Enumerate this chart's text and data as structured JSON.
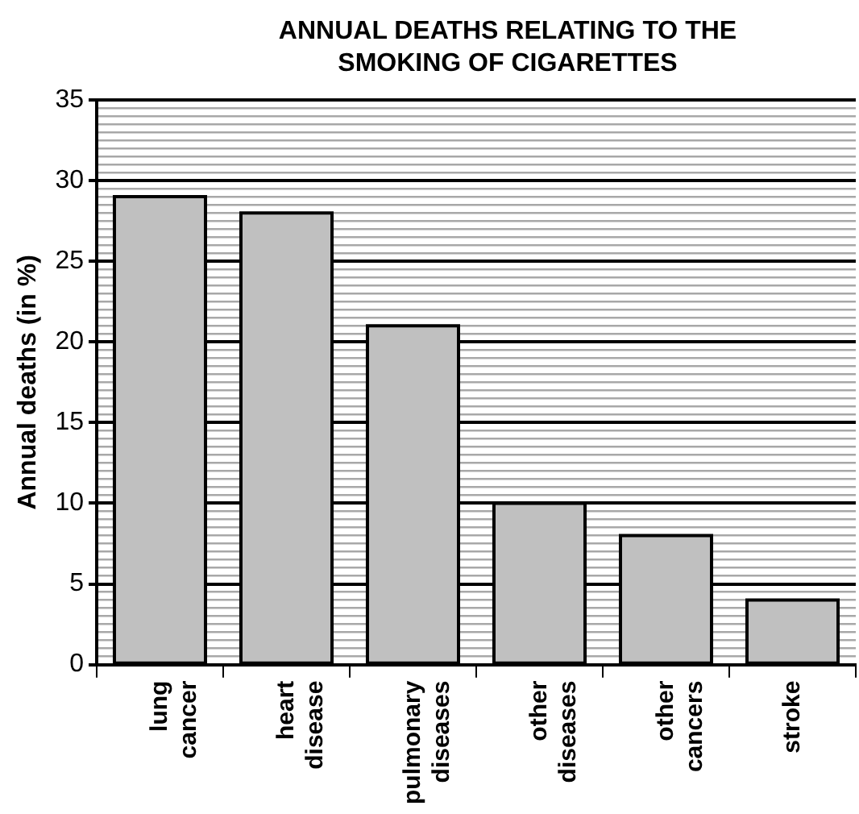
{
  "chart_data": {
    "type": "bar",
    "title": "ANNUAL DEATHS RELATING TO THE SMOKING OF CIGARETTES",
    "ylabel": "Annual deaths (in %)",
    "categories": [
      "lung cancer",
      "heart disease",
      "pulmonary diseases",
      "other diseases",
      "other cancers",
      "stroke"
    ],
    "values": [
      29,
      28,
      21,
      10,
      8,
      4
    ],
    "color": "#c0c0c0",
    "ylim": [
      0,
      35
    ],
    "yticks": [
      0,
      {
        "value": 0.5,
        "label": null
      },
      {
        "value": 1,
        "label": null
      },
      {
        "value": 1.5,
        "label": null
      },
      {
        "value": 2,
        "label": null
      },
      {
        "value": 2.5,
        "label": null
      },
      {
        "value": 3,
        "label": null
      },
      {
        "value": 3.5,
        "label": null
      },
      {
        "value": 4,
        "label": null
      },
      {
        "value": 4.5,
        "label": null
      },
      5,
      {
        "value": 5.5,
        "label": null
      },
      {
        "value": 6,
        "label": null
      },
      {
        "value": 6.5,
        "label": null
      },
      {
        "value": 7,
        "label": null
      },
      {
        "value": 7.5,
        "label": null
      },
      {
        "value": 8,
        "label": null
      },
      {
        "value": 8.5,
        "label": null
      },
      {
        "value": 9,
        "label": null
      },
      {
        "value": 9.5,
        "label": null
      },
      10,
      {
        "value": 10.5,
        "label": null
      },
      {
        "value": 11,
        "label": null
      },
      {
        "value": 11.5,
        "label": null
      },
      {
        "value": 12,
        "label": null
      },
      {
        "value": 12.5,
        "label": null
      },
      {
        "value": 13,
        "label": null
      },
      {
        "value": 13.5,
        "label": null
      },
      {
        "value": 14,
        "label": null
      },
      {
        "value": 14.5,
        "label": null
      },
      15,
      {
        "value": 15.5,
        "label": null
      },
      {
        "value": 16,
        "label": null
      },
      {
        "value": 16.5,
        "label": null
      },
      {
        "value": 17,
        "label": null
      },
      {
        "value": 17.5,
        "label": null
      },
      {
        "value": 18,
        "label": null
      },
      {
        "value": 18.5,
        "label": null
      },
      {
        "value": 19,
        "label": null
      },
      {
        "value": 19.5,
        "label": null
      },
      20,
      {
        "value": 20.5,
        "label": null
      },
      {
        "value": 21,
        "label": null
      },
      {
        "value": 21.5,
        "label": null
      },
      {
        "value": 22,
        "label": null
      },
      {
        "value": 22.5,
        "label": null
      },
      {
        "value": 23,
        "label": null
      },
      {
        "value": 23.5,
        "label": null
      },
      {
        "value": 24,
        "label": null
      },
      {
        "value": 24.5,
        "label": null
      },
      25,
      {
        "value": 25.5,
        "label": null
      },
      {
        "value": 26,
        "label": null
      },
      {
        "value": 26.5,
        "label": null
      },
      {
        "value": 27,
        "label": null
      },
      {
        "value": 27.5,
        "label": null
      },
      {
        "value": 28,
        "label": null
      },
      {
        "value": 28.5,
        "label": null
      },
      {
        "value": 29,
        "label": null
      },
      {
        "value": 29.5,
        "label": null
      },
      30,
      {
        "value": 30.5,
        "label": null
      },
      {
        "value": 31,
        "label": null
      },
      {
        "value": 31.5,
        "label": null
      },
      {
        "value": 32,
        "label": null
      },
      {
        "value": 32.5,
        "label": null
      },
      {
        "value": 33,
        "label": null
      },
      {
        "value": 33.5,
        "label": null
      },
      {
        "value": 34,
        "label": null
      },
      {
        "value": 34.5,
        "label": null
      },
      35
    ],
    "grid": true,
    "legend": false
  }
}
